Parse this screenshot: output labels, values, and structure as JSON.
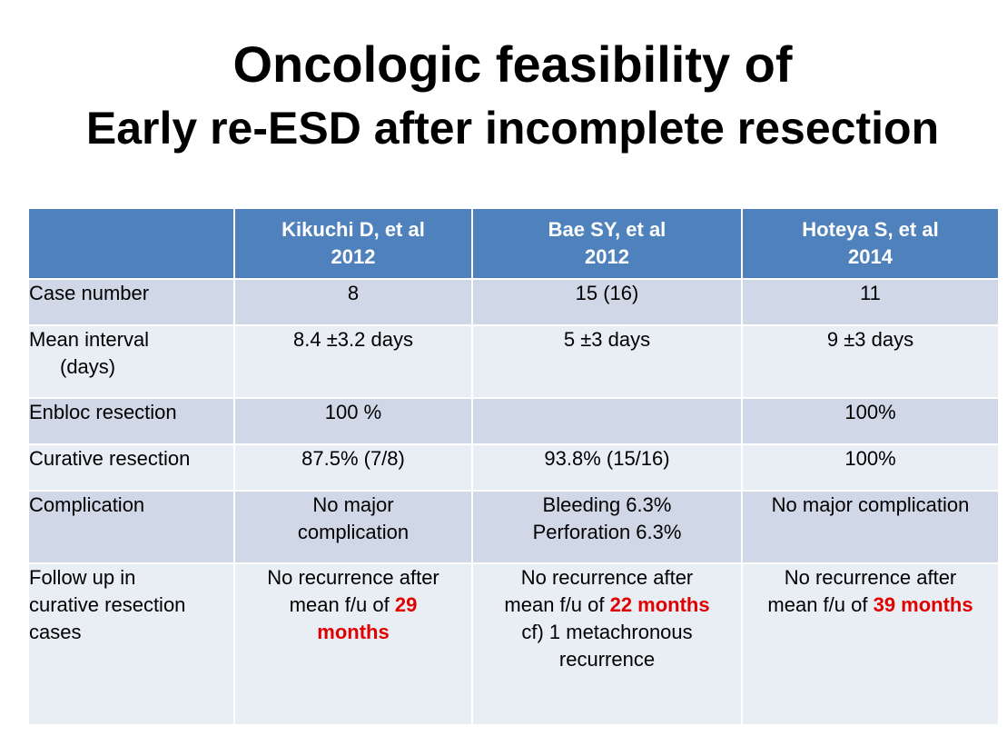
{
  "title": {
    "line1": "Oncologic feasibility of",
    "line2": "Early re-ESD after incomplete resection"
  },
  "table": {
    "headers": [
      {
        "author": "Kikuchi D, et al",
        "year": "2012"
      },
      {
        "author": "Bae SY, et al",
        "year": "2012"
      },
      {
        "author": "Hoteya S, et al",
        "year": "2014"
      }
    ],
    "rows": {
      "case_number": {
        "label": "Case number",
        "values": [
          "8",
          "15 (16)",
          "11"
        ]
      },
      "mean_interval": {
        "label_line1": "Mean interval",
        "label_line2": "(days)",
        "values": [
          "8.4 ±3.2 days",
          "5 ±3 days",
          "9 ±3 days"
        ]
      },
      "enbloc": {
        "label": "Enbloc resection",
        "values": [
          "100 %",
          "",
          "100%"
        ]
      },
      "curative": {
        "label": "Curative resection",
        "values": [
          "87.5% (7/8)",
          "93.8% (15/16)",
          "100%"
        ]
      },
      "complication": {
        "label": "Complication",
        "kikuchi": {
          "line1": "No major",
          "line2": "complication"
        },
        "bae": {
          "line1": "Bleeding 6.3%",
          "line2": "Perforation 6.3%"
        },
        "hoteya": "No major complication"
      },
      "follow_up": {
        "label_line1": "Follow up in",
        "label_line2": "curative resection",
        "label_line3": "cases",
        "kikuchi": {
          "line1": "No recurrence after",
          "prefix": "mean f/u of ",
          "highlight_a": "29",
          "highlight_b": "months"
        },
        "bae": {
          "line1": "No recurrence after",
          "prefix": "mean f/u of ",
          "highlight": "22 months",
          "line3": "cf) 1 metachronous",
          "line4": "recurrence"
        },
        "hoteya": {
          "line1": "No recurrence after",
          "prefix": "mean f/u of ",
          "highlight": "39 months"
        }
      }
    }
  },
  "colors": {
    "header_bg": "#4f81bd",
    "band_a": "#d0d8e8",
    "band_b": "#e9edf4",
    "highlight": "#e00000"
  }
}
